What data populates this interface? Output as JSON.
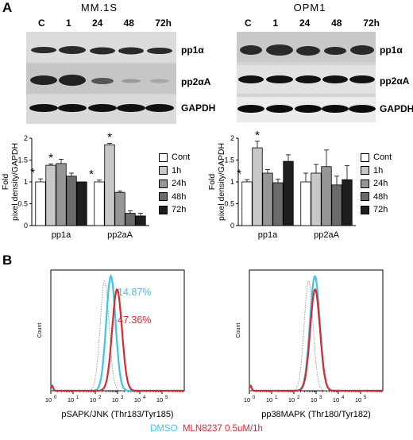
{
  "panels": {
    "a": "A",
    "b": "B"
  },
  "blots": {
    "left": {
      "cell_line": "MM.1S",
      "lanes": [
        "C",
        "1",
        "24",
        "48",
        "72h"
      ],
      "bands": [
        "pp1α",
        "pp2αA",
        "GAPDH"
      ]
    },
    "right": {
      "cell_line": "OPM1",
      "lanes": [
        "C",
        "1",
        "24",
        "48",
        "72h"
      ],
      "bands": [
        "pp1α",
        "pp2αA",
        "GAPDH"
      ]
    }
  },
  "legend": [
    "Cont",
    "1h",
    "24h",
    "48h",
    "72h"
  ],
  "colors": {
    "fills": [
      "#ffffff",
      "#c8c8c8",
      "#969696",
      "#6a6a6a",
      "#1e1e1e"
    ],
    "dmso": "#3ec6e0",
    "mln": "#d42a34"
  },
  "chart_data": [
    {
      "type": "bar",
      "categories": [
        "pp1a",
        "pp2aA"
      ],
      "ylabel": "Fold\npixel density/GAPDH",
      "ylim": [
        0,
        2
      ],
      "yticks": [
        "0",
        "0.5",
        "1",
        "1.5",
        "2"
      ],
      "series": [
        {
          "name": "Cont",
          "values": [
            1.0,
            1.0
          ],
          "errors": [
            0.07,
            0.04
          ]
        },
        {
          "name": "1h",
          "values": [
            1.38,
            1.85
          ],
          "errors": [
            0.03,
            0.03
          ]
        },
        {
          "name": "24h",
          "values": [
            1.42,
            0.76
          ],
          "errors": [
            0.1,
            0.03
          ]
        },
        {
          "name": "48h",
          "values": [
            1.13,
            0.28
          ],
          "errors": [
            0.07,
            0.06
          ]
        },
        {
          "name": "72h",
          "values": [
            1.0,
            0.22
          ],
          "errors": [
            0.0,
            0.06
          ]
        }
      ],
      "annotations": [
        {
          "text": "*",
          "category": "pp1a",
          "series": "Cont"
        },
        {
          "text": "*",
          "category": "pp1a",
          "series": "1h"
        },
        {
          "text": "*",
          "category": "pp2aA",
          "series": "Cont"
        },
        {
          "text": "*",
          "category": "pp2aA",
          "series": "1h"
        }
      ]
    },
    {
      "type": "bar",
      "categories": [
        "pp1a",
        "pp2aA"
      ],
      "ylabel": "Fold\npixel density/GAPDH",
      "ylim": [
        0,
        2
      ],
      "yticks": [
        "0",
        "0.5",
        "1",
        "1.5",
        "2"
      ],
      "series": [
        {
          "name": "Cont",
          "values": [
            1.0,
            1.0
          ],
          "errors": [
            0.05,
            0.2
          ]
        },
        {
          "name": "1h",
          "values": [
            1.78,
            1.2
          ],
          "errors": [
            0.15,
            0.2
          ]
        },
        {
          "name": "24h",
          "values": [
            1.2,
            1.35
          ],
          "errors": [
            0.08,
            0.38
          ]
        },
        {
          "name": "48h",
          "values": [
            0.98,
            0.93
          ],
          "errors": [
            0.08,
            0.2
          ]
        },
        {
          "name": "72h",
          "values": [
            1.47,
            1.05
          ],
          "errors": [
            0.15,
            0.32
          ]
        }
      ],
      "annotations": [
        {
          "text": "*",
          "category": "pp1a",
          "series": "Cont"
        },
        {
          "text": "*",
          "category": "pp1a",
          "series": "1h"
        }
      ]
    }
  ],
  "flow": [
    {
      "type": "histogram",
      "ylabel": "Count",
      "xlabel": "pSAPK/JNK (Thr183/Tyr185)",
      "x_ticks": [
        "10",
        "10",
        "10",
        "10",
        "10",
        "10"
      ],
      "x_exponents": [
        "0",
        "1",
        "2",
        "3",
        "4",
        "5"
      ],
      "x_scale": "log",
      "xlim": [
        1,
        1000000
      ],
      "peaks": [
        {
          "name": "DMSO",
          "color": "#3ec6e0",
          "peak": 500,
          "width": 0.21
        },
        {
          "name": "MLN8237 0.5uM/1h",
          "color": "#d42a34",
          "peak": 950,
          "width": 0.22
        }
      ],
      "annotations": [
        {
          "text": "14.87%",
          "color": "#3ec6e0"
        },
        {
          "text": "47.36%",
          "color": "#d42a34"
        }
      ]
    },
    {
      "type": "histogram",
      "ylabel": "Count",
      "xlabel": "pp38MAPK (Thr180/Tyr182)",
      "x_ticks": [
        "10",
        "10",
        "10",
        "10",
        "10",
        "10"
      ],
      "x_exponents": [
        "0",
        "1",
        "2",
        "3",
        "4",
        "5"
      ],
      "x_scale": "log",
      "xlim": [
        1,
        1000000
      ],
      "peaks": [
        {
          "name": "DMSO",
          "color": "#3ec6e0",
          "peak": 880,
          "width": 0.22
        },
        {
          "name": "MLN8237 0.5uM/1h",
          "color": "#d42a34",
          "peak": 900,
          "width": 0.22
        }
      ],
      "annotations": []
    }
  ],
  "caption": {
    "dmso": "DMSO",
    "mln": "MLN8237 0.5uM/1h"
  }
}
